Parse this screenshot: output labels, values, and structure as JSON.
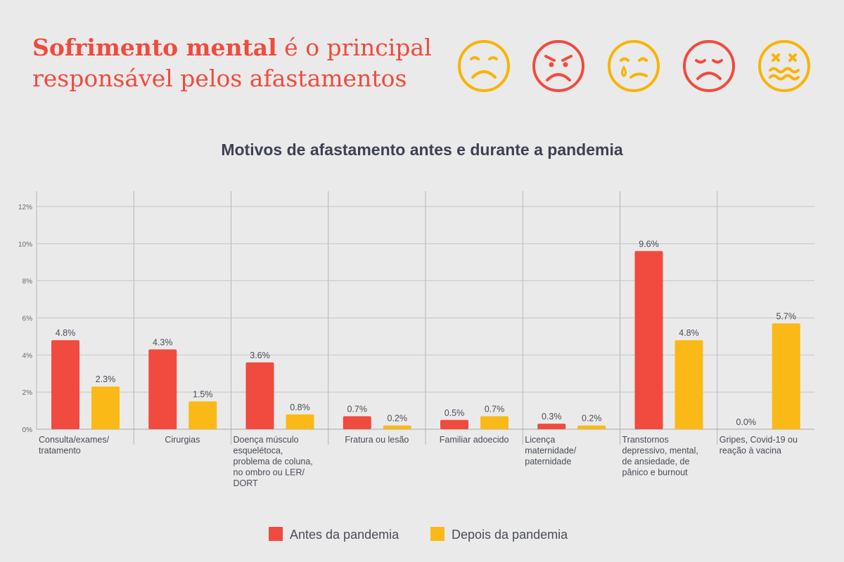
{
  "headline": {
    "bold": "Sofrimento mental",
    "rest_line1": " é o principal",
    "line2": "responsável pelos afastamentos"
  },
  "faces": [
    {
      "icon": "sad-face-icon",
      "color": "#f9b300"
    },
    {
      "icon": "angry-face-icon",
      "color": "#f04b3e"
    },
    {
      "icon": "crying-face-icon",
      "color": "#f9b300"
    },
    {
      "icon": "sad-closed-eyes-face-icon",
      "color": "#f04b3e"
    },
    {
      "icon": "dizzy-face-icon",
      "color": "#f9b300"
    }
  ],
  "colors": {
    "before": "#f04b3e",
    "after": "#fbb917"
  },
  "chart_data": {
    "type": "bar",
    "title": "Motivos de afastamento antes e durante a pandemia",
    "ylim": [
      0,
      12
    ],
    "yticks": [
      "0%",
      "2%",
      "4%",
      "6%",
      "8%",
      "10%",
      "12%"
    ],
    "grid": true,
    "legend_position": "bottom",
    "categories": [
      [
        "Consulta/exames/",
        "tratamento"
      ],
      [
        "Cirurgias"
      ],
      [
        "Doença músculo",
        "esquelétoca,",
        "problema de coluna,",
        "no ombro ou LER/",
        "DORT"
      ],
      [
        "Fratura ou lesão"
      ],
      [
        "Familiar adoecido"
      ],
      [
        "Licença",
        "maternidade/",
        "paternidade"
      ],
      [
        "Transtornos",
        "depressivo, mental,",
        "de ansiedade, de",
        "pânico e burnout"
      ],
      [
        "Gripes, Covid-19 ou",
        "reação à vacina"
      ]
    ],
    "category_align": [
      "left",
      "center",
      "left",
      "center",
      "center",
      "left",
      "left",
      "left"
    ],
    "series": [
      {
        "name": "Antes da pandemia",
        "values": [
          4.8,
          4.3,
          3.6,
          0.7,
          0.5,
          0.3,
          9.6,
          0.0
        ],
        "labels": [
          "4.8%",
          "4.3%",
          "3.6%",
          "0.7%",
          "0.5%",
          "0.3%",
          "9.6%",
          "0.0%"
        ]
      },
      {
        "name": "Depois da pandemia",
        "values": [
          2.3,
          1.5,
          0.8,
          0.2,
          0.7,
          0.2,
          4.8,
          5.7
        ],
        "labels": [
          "2.3%",
          "1.5%",
          "0.8%",
          "0.2%",
          "0.7%",
          "0.2%",
          "4.8%",
          "5.7%"
        ]
      }
    ]
  }
}
